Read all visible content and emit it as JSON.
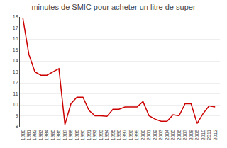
{
  "chart_data": {
    "type": "line",
    "title": "minutes de SMIC pour acheter un litre de super",
    "x": [
      1980,
      1981,
      1982,
      1983,
      1984,
      1985,
      1986,
      1987,
      1988,
      1989,
      1990,
      1991,
      1992,
      1993,
      1994,
      1995,
      1996,
      1997,
      1998,
      1999,
      2000,
      2001,
      2002,
      2003,
      2004,
      2005,
      2006,
      2007,
      2008,
      2009,
      2010,
      2011,
      2012
    ],
    "values": [
      17.9,
      14.6,
      13.0,
      12.7,
      12.7,
      13.0,
      13.3,
      8.2,
      10.1,
      10.7,
      10.7,
      9.5,
      9.0,
      9.0,
      8.95,
      9.6,
      9.6,
      9.8,
      9.8,
      9.8,
      10.3,
      9.0,
      8.7,
      8.5,
      8.5,
      9.1,
      9.0,
      10.1,
      10.1,
      8.3,
      9.2,
      9.9,
      9.8
    ],
    "color": "#cc0000",
    "xlim": [
      1979.5,
      2012.8
    ],
    "xticks": [
      1980,
      1981,
      1982,
      1983,
      1984,
      1985,
      1986,
      1987,
      1988,
      1989,
      1990,
      1991,
      1992,
      1993,
      1994,
      1995,
      1996,
      1997,
      1998,
      1999,
      2000,
      2001,
      2002,
      2003,
      2004,
      2005,
      2006,
      2007,
      2008,
      2009,
      2010,
      2011,
      2012
    ],
    "ylim": [
      8,
      18
    ],
    "yticks": [
      8,
      9,
      10,
      11,
      12,
      13,
      14,
      15,
      16,
      17,
      18
    ],
    "grid": "y"
  }
}
